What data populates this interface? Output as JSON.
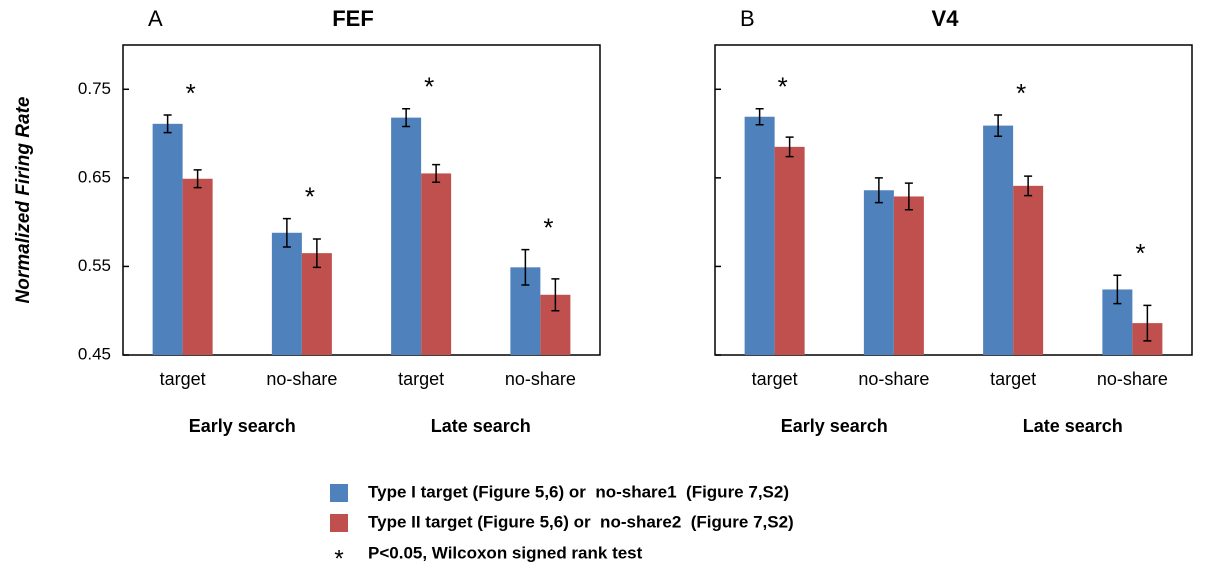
{
  "chart_data": [
    {
      "type": "bar",
      "panel": "A",
      "title": "FEF",
      "y_label": "Normalized Firing Rate",
      "categories": [
        "target",
        "no-share",
        "target",
        "no-share"
      ],
      "groups": [
        "Early search",
        "Late search"
      ],
      "significance": [
        "*",
        "*",
        "*",
        "*"
      ],
      "series": [
        {
          "name": "Type I target (Figure 5,6) or  no-share1  (Figure 7,S2)",
          "color": "#4f81bd",
          "values": [
            0.711,
            0.588,
            0.718,
            0.549
          ],
          "errors": [
            0.01,
            0.016,
            0.01,
            0.02
          ]
        },
        {
          "name": "Type II target (Figure 5,6) or  no-share2  (Figure 7,S2)",
          "color": "#c0504d",
          "values": [
            0.649,
            0.565,
            0.655,
            0.518
          ],
          "errors": [
            0.01,
            0.016,
            0.01,
            0.018
          ]
        }
      ],
      "ylim": [
        0.45,
        0.8
      ],
      "yticks": [
        0.45,
        0.55,
        0.65,
        0.75
      ],
      "legend_note": {
        "symbol": "*",
        "text": "P<0.05, Wilcoxon signed rank test"
      }
    },
    {
      "type": "bar",
      "panel": "B",
      "title": "V4",
      "categories": [
        "target",
        "no-share",
        "target",
        "no-share"
      ],
      "groups": [
        "Early search",
        "Late search"
      ],
      "significance": [
        "*",
        null,
        "*",
        "*"
      ],
      "series": [
        {
          "color": "#4f81bd",
          "values": [
            0.719,
            0.636,
            0.709,
            0.524
          ],
          "errors": [
            0.009,
            0.014,
            0.012,
            0.016
          ]
        },
        {
          "color": "#c0504d",
          "values": [
            0.685,
            0.629,
            0.641,
            0.486
          ],
          "errors": [
            0.011,
            0.015,
            0.011,
            0.02
          ]
        }
      ],
      "ylim": [
        0.45,
        0.8
      ]
    }
  ]
}
